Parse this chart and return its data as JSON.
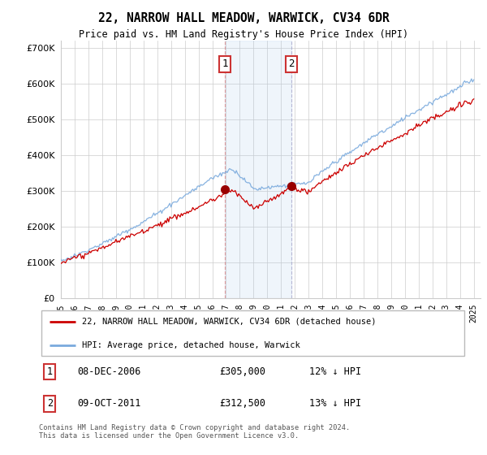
{
  "title": "22, NARROW HALL MEADOW, WARWICK, CV34 6DR",
  "subtitle": "Price paid vs. HM Land Registry's House Price Index (HPI)",
  "legend_line1": "22, NARROW HALL MEADOW, WARWICK, CV34 6DR (detached house)",
  "legend_line2": "HPI: Average price, detached house, Warwick",
  "transaction1_label": "1",
  "transaction1_date": "08-DEC-2006",
  "transaction1_price": "£305,000",
  "transaction1_hpi": "12% ↓ HPI",
  "transaction2_label": "2",
  "transaction2_date": "09-OCT-2011",
  "transaction2_price": "£312,500",
  "transaction2_hpi": "13% ↓ HPI",
  "footer": "Contains HM Land Registry data © Crown copyright and database right 2024.\nThis data is licensed under the Open Government Licence v3.0.",
  "hpi_color": "#7aaadd",
  "price_color": "#cc0000",
  "marker_color": "#990000",
  "transaction1_x": 2006.92,
  "transaction2_x": 2011.75,
  "transaction1_y": 305000,
  "transaction2_y": 312500,
  "shade_x1": 2006.92,
  "shade_x2": 2011.75,
  "ylim_min": 0,
  "ylim_max": 720000,
  "xlim_min": 1995,
  "xlim_max": 2025.5,
  "yticks": [
    0,
    100000,
    200000,
    300000,
    400000,
    500000,
    600000,
    700000
  ],
  "xticks": [
    1995,
    1996,
    1997,
    1998,
    1999,
    2000,
    2001,
    2002,
    2003,
    2004,
    2005,
    2006,
    2007,
    2008,
    2009,
    2010,
    2011,
    2012,
    2013,
    2014,
    2015,
    2016,
    2017,
    2018,
    2019,
    2020,
    2021,
    2022,
    2023,
    2024,
    2025
  ]
}
